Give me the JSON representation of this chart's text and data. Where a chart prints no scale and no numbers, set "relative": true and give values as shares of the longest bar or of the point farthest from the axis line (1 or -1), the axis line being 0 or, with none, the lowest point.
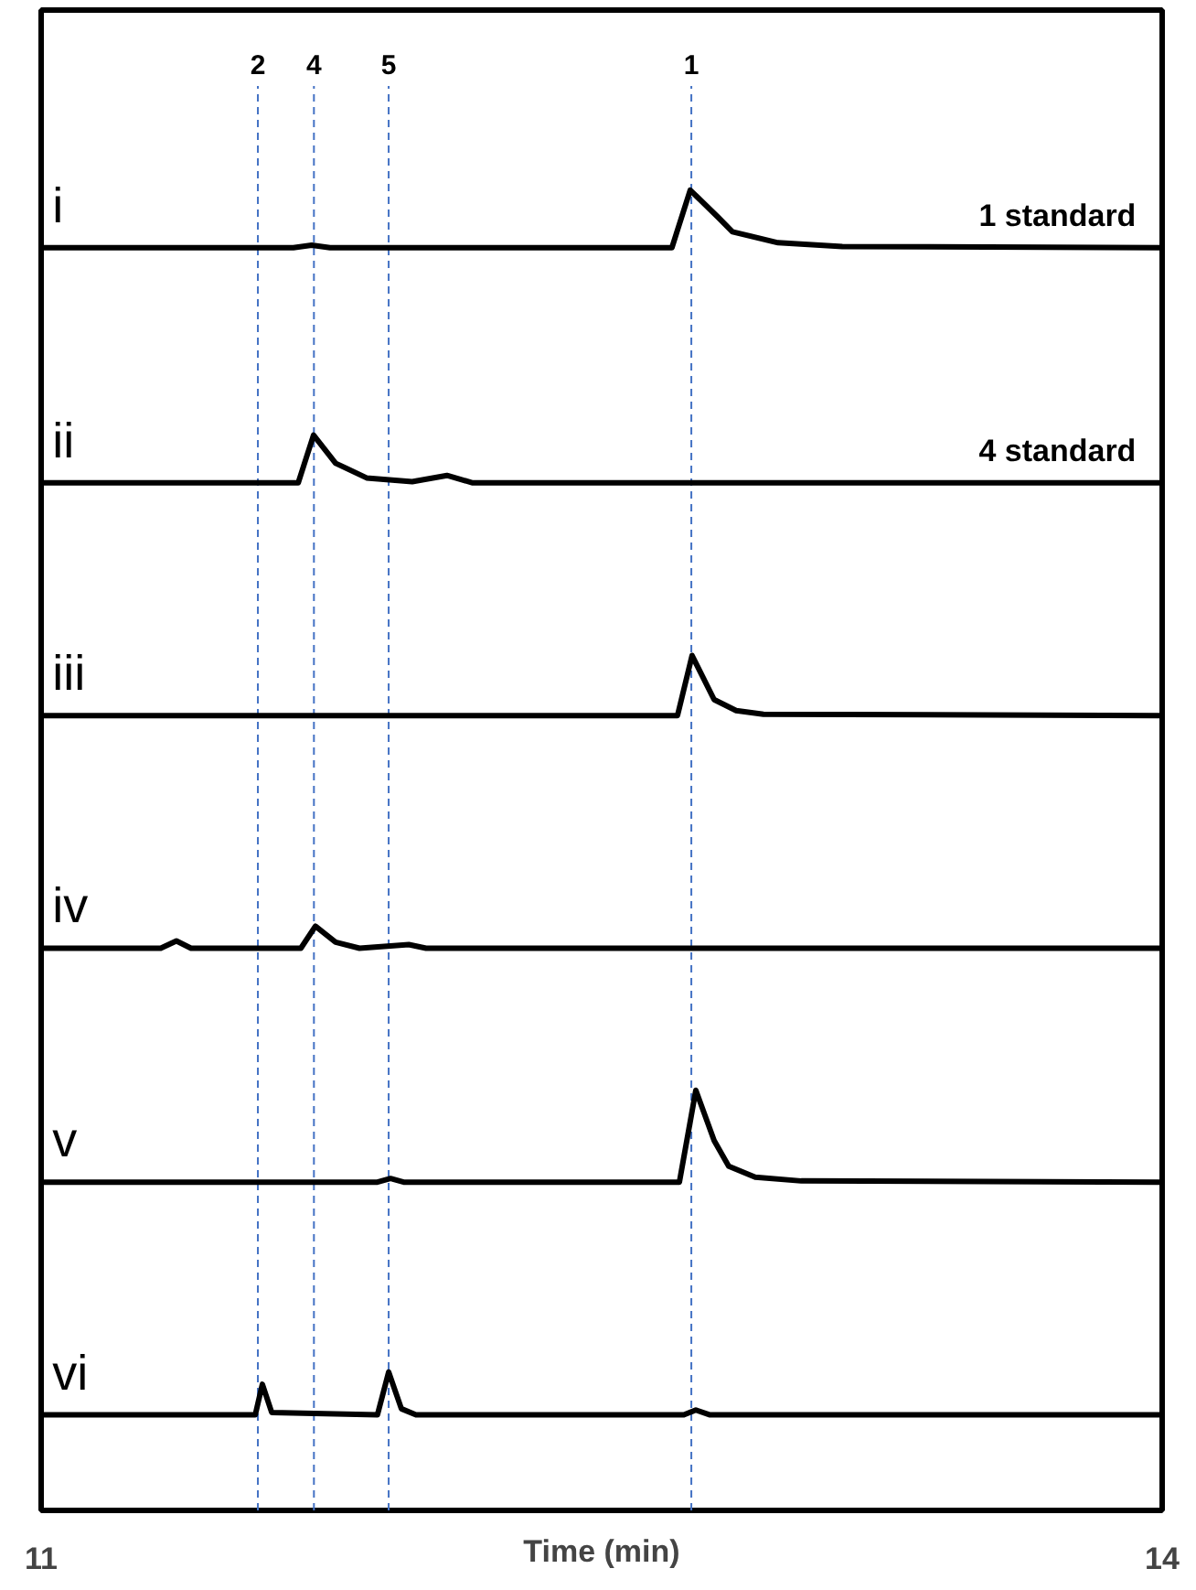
{
  "chart_data": {
    "type": "line",
    "relative": true,
    "xlabel": "Time (min)",
    "xlim": [
      11,
      14
    ],
    "xticks": [
      11,
      14
    ],
    "grid": false,
    "legend": false,
    "marker": "none",
    "line_style": "solid",
    "annotations": [
      "2",
      "4",
      "5",
      "1",
      "1 standard",
      "4 standard"
    ],
    "ref_lines": [
      {
        "axis": "x",
        "value": 11.58,
        "color": "#4472c4",
        "line_style": "dashed"
      },
      {
        "axis": "x",
        "value": 11.73,
        "color": "#4472c4",
        "line_style": "dashed"
      },
      {
        "axis": "x",
        "value": 11.93,
        "color": "#4472c4",
        "line_style": "dashed"
      },
      {
        "axis": "x",
        "value": 12.74,
        "color": "#4472c4",
        "line_style": "dashed"
      }
    ],
    "series": [
      {
        "name": "i",
        "color": "#000000",
        "x": [
          11.0,
          11.675,
          11.724,
          11.773,
          12.688,
          12.737,
          12.811,
          12.85,
          12.972,
          13.144,
          14.0
        ],
        "values": [
          0.953,
          0.953,
          0.955,
          0.953,
          0.953,
          1.0,
          0.978,
          0.966,
          0.957,
          0.954,
          0.953
        ]
      },
      {
        "name": "ii",
        "color": "#000000",
        "x": [
          11.0,
          11.688,
          11.729,
          11.788,
          11.871,
          11.993,
          12.086,
          12.155,
          14.0
        ],
        "values": [
          0.761,
          0.761,
          0.8,
          0.777,
          0.765,
          0.762,
          0.767,
          0.761,
          0.761
        ]
      },
      {
        "name": "iii",
        "color": "#000000",
        "x": [
          11.0,
          12.703,
          12.742,
          12.801,
          12.86,
          12.933,
          14.0
        ],
        "values": [
          0.571,
          0.571,
          0.62,
          0.584,
          0.575,
          0.572,
          0.571
        ]
      },
      {
        "name": "iv",
        "color": "#000000",
        "x": [
          11.0,
          11.32,
          11.362,
          11.401,
          11.695,
          11.734,
          11.788,
          11.852,
          11.984,
          12.03,
          14.0
        ],
        "values": [
          0.381,
          0.381,
          0.387,
          0.381,
          0.381,
          0.399,
          0.386,
          0.381,
          0.384,
          0.381,
          0.381
        ]
      },
      {
        "name": "v",
        "color": "#000000",
        "x": [
          11.0,
          11.9,
          11.935,
          11.97,
          12.708,
          12.752,
          12.801,
          12.84,
          12.911,
          13.034,
          14.0
        ],
        "values": [
          0.19,
          0.19,
          0.193,
          0.19,
          0.19,
          0.265,
          0.224,
          0.203,
          0.194,
          0.191,
          0.19
        ]
      },
      {
        "name": "vi",
        "color": "#000000",
        "x": [
          11.0,
          11.573,
          11.592,
          11.617,
          11.9,
          11.93,
          11.964,
          12.003,
          12.72,
          12.752,
          12.79,
          14.0
        ],
        "values": [
          0.0,
          0.0,
          0.025,
          0.002,
          0.0,
          0.035,
          0.005,
          0.0,
          0.0,
          0.004,
          0.0,
          0.0
        ]
      }
    ]
  }
}
